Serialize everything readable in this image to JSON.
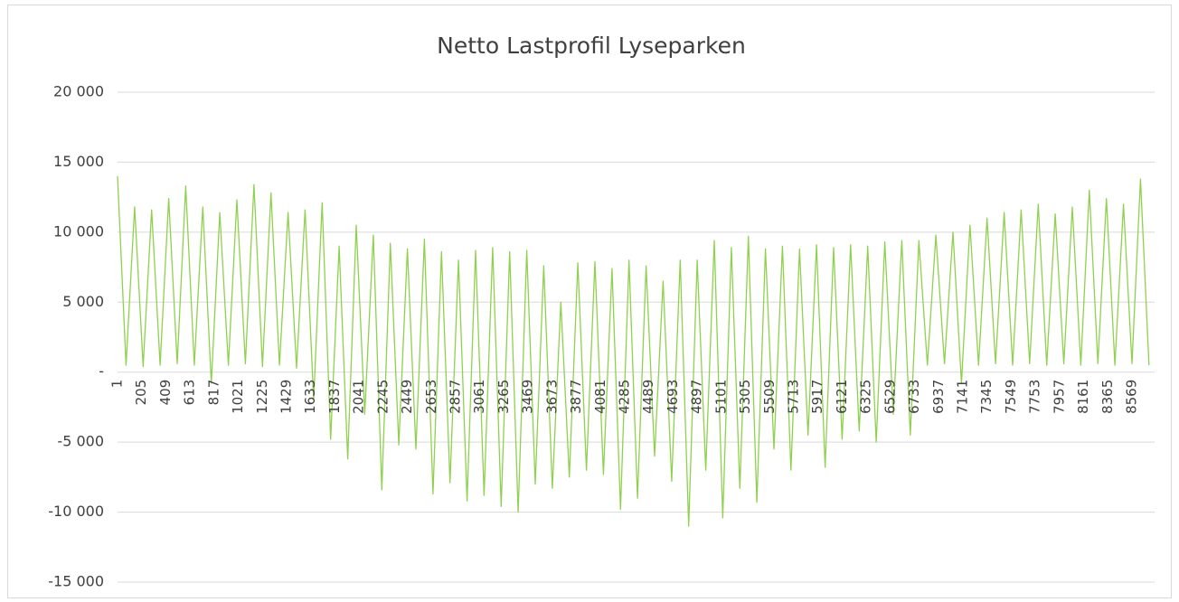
{
  "chart_data": {
    "type": "line",
    "title": "Netto Lastprofil Lyseparken",
    "color": "#8fd14f",
    "grid": true,
    "x": [
      1,
      73,
      145,
      217,
      289,
      361,
      433,
      505,
      577,
      649,
      721,
      793,
      865,
      937,
      1009,
      1081,
      1153,
      1225,
      1297,
      1369,
      1441,
      1513,
      1585,
      1657,
      1729,
      1801,
      1873,
      1945,
      2017,
      2089,
      2161,
      2233,
      2305,
      2377,
      2449,
      2521,
      2593,
      2665,
      2737,
      2809,
      2881,
      2953,
      3025,
      3097,
      3169,
      3241,
      3313,
      3385,
      3457,
      3529,
      3601,
      3673,
      3745,
      3817,
      3889,
      3961,
      4033,
      4105,
      4177,
      4249,
      4321,
      4393,
      4465,
      4537,
      4609,
      4681,
      4753,
      4825,
      4897,
      4969,
      5041,
      5113,
      5185,
      5257,
      5329,
      5401,
      5473,
      5545,
      5617,
      5689,
      5761,
      5833,
      5905,
      5977,
      6049,
      6121,
      6193,
      6265,
      6337,
      6409,
      6481,
      6553,
      6625,
      6697,
      6769,
      6841,
      6913,
      6985,
      7057,
      7129,
      7201,
      7273,
      7345,
      7417,
      7489,
      7561,
      7633,
      7705,
      7777,
      7849,
      7921,
      7993,
      8065,
      8137,
      8209,
      8281,
      8353,
      8425,
      8497,
      8569,
      8641,
      8713
    ],
    "values": [
      14000,
      500,
      11800,
      400,
      11600,
      500,
      12400,
      600,
      13300,
      500,
      11800,
      -800,
      11400,
      500,
      12300,
      600,
      13400,
      400,
      12800,
      500,
      11400,
      300,
      11600,
      -2000,
      12100,
      -4800,
      9000,
      -6200,
      10500,
      -3000,
      9800,
      -8400,
      9200,
      -5200,
      8800,
      -5500,
      9500,
      -8700,
      8600,
      -7900,
      8000,
      -9200,
      8700,
      -8800,
      8900,
      -9600,
      8600,
      -10000,
      8700,
      -8000,
      7600,
      -8300,
      5000,
      -7500,
      7800,
      -7000,
      7900,
      -7300,
      7400,
      -9800,
      8000,
      -9000,
      7600,
      -6000,
      6500,
      -7800,
      8000,
      -11000,
      8000,
      -7000,
      9400,
      -10400,
      8900,
      -8300,
      9700,
      -9300,
      8800,
      -5500,
      9000,
      -7000,
      8800,
      -4500,
      9100,
      -6800,
      8900,
      -4800,
      9100,
      -4200,
      9000,
      -5000,
      9300,
      -3000,
      9400,
      -4500,
      9400,
      500,
      9800,
      600,
      10000,
      -800,
      10500,
      500,
      11000,
      600,
      11400,
      500,
      11600,
      600,
      12000,
      500,
      11300,
      600,
      11800,
      500,
      13000,
      600,
      12400,
      500,
      12000,
      600,
      13800,
      500
    ],
    "xlim": [
      1,
      8760
    ],
    "xticks": [
      1,
      205,
      409,
      613,
      817,
      1021,
      1225,
      1429,
      1633,
      1837,
      2041,
      2245,
      2449,
      2653,
      2857,
      3061,
      3265,
      3469,
      3673,
      3877,
      4081,
      4285,
      4489,
      4693,
      4897,
      5101,
      5305,
      5509,
      5713,
      5917,
      6121,
      6325,
      6529,
      6733,
      6937,
      7141,
      7345,
      7549,
      7753,
      7957,
      8161,
      8365,
      8569
    ],
    "ylim": [
      -15000,
      20000
    ],
    "yticks": [
      {
        "value": -15000,
        "label": "-15 000"
      },
      {
        "value": -10000,
        "label": "-10 000"
      },
      {
        "value": -5000,
        "label": "-5 000"
      },
      {
        "value": 0,
        "label": "-"
      },
      {
        "value": 5000,
        "label": "5 000"
      },
      {
        "value": 10000,
        "label": "10 000"
      },
      {
        "value": 15000,
        "label": "15 000"
      },
      {
        "value": 20000,
        "label": "20 000"
      }
    ]
  }
}
